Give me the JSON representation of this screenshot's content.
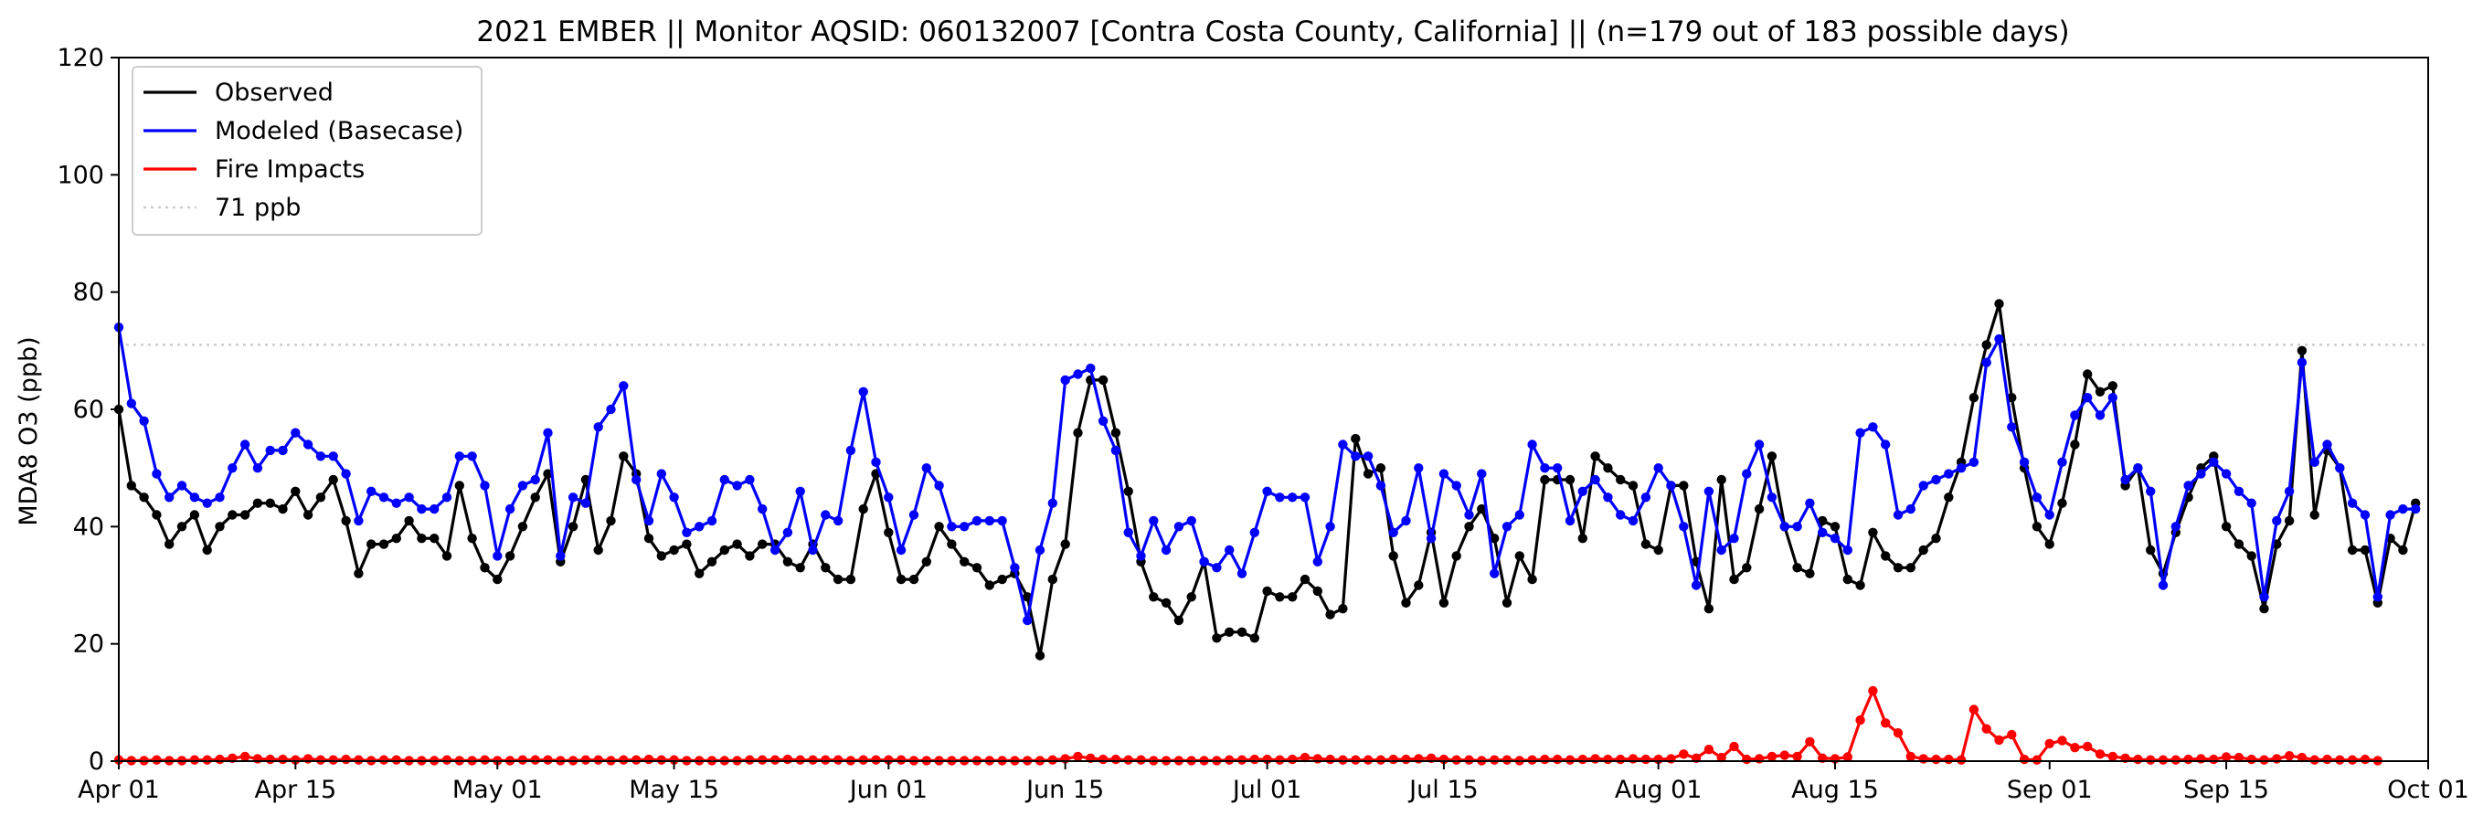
{
  "chart_data": {
    "type": "line",
    "title": "2021 EMBER || Monitor AQSID: 060132007 [Contra Costa County, California] || (n=179 out of 183 possible days)",
    "ylabel": "MDA8 O3 (ppb)",
    "xlabel": "",
    "x_start": "2021-04-01",
    "x_end": "2021-10-01",
    "xlim_days": [
      0,
      183
    ],
    "ylim": [
      0,
      120
    ],
    "yticks": [
      0,
      20,
      40,
      60,
      80,
      100,
      120
    ],
    "ytick_labels": [
      "0",
      "20",
      "40",
      "60",
      "80",
      "100",
      "120"
    ],
    "xticks": [
      {
        "day": 0,
        "label": "Apr 01"
      },
      {
        "day": 14,
        "label": "Apr 15"
      },
      {
        "day": 30,
        "label": "May 01"
      },
      {
        "day": 44,
        "label": "May 15"
      },
      {
        "day": 61,
        "label": "Jun 01"
      },
      {
        "day": 75,
        "label": "Jun 15"
      },
      {
        "day": 91,
        "label": "Jul 01"
      },
      {
        "day": 105,
        "label": "Jul 15"
      },
      {
        "day": 122,
        "label": "Aug 01"
      },
      {
        "day": 136,
        "label": "Aug 15"
      },
      {
        "day": 153,
        "label": "Sep 01"
      },
      {
        "day": 167,
        "label": "Sep 15"
      },
      {
        "day": 183,
        "label": "Oct 01"
      }
    ],
    "grid": false,
    "legend_position": "top-left",
    "legend": [
      {
        "label": "Observed",
        "color": "#000000",
        "style": "solid"
      },
      {
        "label": "Modeled (Basecase)",
        "color": "#0000ff",
        "style": "solid"
      },
      {
        "label": "Fire Impacts",
        "color": "#ff0000",
        "style": "solid"
      },
      {
        "label": "71 ppb",
        "color": "#cccccc",
        "style": "dotted"
      }
    ],
    "threshold": {
      "value": 71,
      "label": "71 ppb",
      "color": "#cccccc"
    },
    "series": [
      {
        "name": "Observed",
        "color": "#000000",
        "start_day": 0,
        "values": [
          60,
          47,
          45,
          42,
          37,
          40,
          42,
          36,
          40,
          42,
          42,
          44,
          44,
          43,
          46,
          42,
          45,
          48,
          41,
          32,
          37,
          37,
          38,
          41,
          38,
          38,
          35,
          47,
          38,
          33,
          31,
          35,
          40,
          45,
          49,
          34,
          40,
          48,
          36,
          41,
          52,
          49,
          38,
          35,
          36,
          37,
          32,
          34,
          36,
          37,
          35,
          37,
          37,
          34,
          33,
          37,
          33,
          31,
          31,
          43,
          49,
          39,
          31,
          31,
          34,
          40,
          37,
          34,
          33,
          30,
          31,
          32,
          28,
          18,
          31,
          37,
          56,
          65,
          65,
          56,
          46,
          34,
          28,
          27,
          24,
          28,
          34,
          21,
          22,
          22,
          21,
          29,
          28,
          28,
          31,
          29,
          25,
          26,
          55,
          49,
          50,
          35,
          27,
          30,
          39,
          27,
          35,
          40,
          43,
          38,
          27,
          35,
          31,
          48,
          48,
          48,
          38,
          52,
          50,
          48,
          47,
          37,
          36,
          47,
          47,
          34,
          26,
          48,
          31,
          33,
          43,
          52,
          40,
          33,
          32,
          41,
          40,
          31,
          30,
          39,
          35,
          33,
          33,
          36,
          38,
          45,
          51,
          62,
          71,
          78,
          62,
          50,
          40,
          37,
          44,
          54,
          66,
          63,
          64,
          47,
          50,
          36,
          32,
          39,
          45,
          50,
          52,
          40,
          37,
          35,
          26,
          37,
          41,
          70,
          42,
          53,
          50,
          36,
          36,
          27,
          38,
          36,
          44
        ]
      },
      {
        "name": "Modeled (Basecase)",
        "color": "#0000ff",
        "start_day": 0,
        "values": [
          74,
          61,
          58,
          49,
          45,
          47,
          45,
          44,
          45,
          50,
          54,
          50,
          53,
          53,
          56,
          54,
          52,
          52,
          49,
          41,
          46,
          45,
          44,
          45,
          43,
          43,
          45,
          52,
          52,
          47,
          35,
          43,
          47,
          48,
          56,
          35,
          45,
          44,
          57,
          60,
          64,
          48,
          41,
          49,
          45,
          39,
          40,
          41,
          48,
          47,
          48,
          43,
          36,
          39,
          46,
          36,
          42,
          41,
          53,
          63,
          51,
          45,
          36,
          42,
          50,
          47,
          40,
          40,
          41,
          41,
          41,
          33,
          24,
          36,
          44,
          65,
          66,
          67,
          58,
          53,
          39,
          35,
          41,
          36,
          40,
          41,
          34,
          33,
          36,
          32,
          39,
          46,
          45,
          45,
          45,
          34,
          40,
          54,
          52,
          52,
          47,
          39,
          41,
          50,
          38,
          49,
          47,
          42,
          49,
          32,
          40,
          42,
          54,
          50,
          50,
          41,
          46,
          48,
          45,
          42,
          41,
          45,
          50,
          47,
          40,
          30,
          46,
          36,
          38,
          49,
          54,
          45,
          40,
          40,
          44,
          39,
          38,
          36,
          56,
          57,
          54,
          42,
          43,
          47,
          48,
          49,
          50,
          51,
          68,
          72,
          57,
          51,
          45,
          42,
          51,
          59,
          62,
          59,
          62,
          48,
          50,
          46,
          30,
          40,
          47,
          49,
          51,
          49,
          46,
          44,
          28,
          41,
          46,
          68,
          51,
          54,
          50,
          44,
          42,
          28,
          42,
          43,
          43
        ]
      },
      {
        "name": "Fire Impacts",
        "color": "#ff0000",
        "start_day": 0,
        "values": [
          0.2,
          0.1,
          0.1,
          0.2,
          0.1,
          0.1,
          0.2,
          0.2,
          0.3,
          0.5,
          0.8,
          0.4,
          0.3,
          0.3,
          0.2,
          0.4,
          0.2,
          0.2,
          0.3,
          0.2,
          0.1,
          0.2,
          0.2,
          0.1,
          0.1,
          0.1,
          0.2,
          0.1,
          0.1,
          0.2,
          0.1,
          0.1,
          0.2,
          0.2,
          0.2,
          0.1,
          0.1,
          0.2,
          0.2,
          0.1,
          0.2,
          0.2,
          0.3,
          0.2,
          0.2,
          0.1,
          0.1,
          0.1,
          0.1,
          0.1,
          0.2,
          0.2,
          0.2,
          0.3,
          0.2,
          0.2,
          0.2,
          0.2,
          0.1,
          0.2,
          0.2,
          0.2,
          0.2,
          0.1,
          0.1,
          0.1,
          0.1,
          0.1,
          0.1,
          0.1,
          0.1,
          0.1,
          0.1,
          0.1,
          0.2,
          0.4,
          0.8,
          0.5,
          0.3,
          0.3,
          0.2,
          0.2,
          0.1,
          0.1,
          0.1,
          0.1,
          0.1,
          0.1,
          0.2,
          0.2,
          0.3,
          0.3,
          0.2,
          0.3,
          0.6,
          0.4,
          0.3,
          0.2,
          0.2,
          0.2,
          0.2,
          0.3,
          0.3,
          0.4,
          0.5,
          0.3,
          0.2,
          0.2,
          0.1,
          0.2,
          0.2,
          0.1,
          0.2,
          0.3,
          0.3,
          0.2,
          0.3,
          0.4,
          0.3,
          0.3,
          0.4,
          0.3,
          0.3,
          0.4,
          1.2,
          0.5,
          2.0,
          0.6,
          2.5,
          0.3,
          0.4,
          0.8,
          1.0,
          0.8,
          3.3,
          0.5,
          0.4,
          0.7,
          7.0,
          12.0,
          6.5,
          4.8,
          0.8,
          0.4,
          0.3,
          0.3,
          0.2,
          8.8,
          5.5,
          3.6,
          4.5,
          0.3,
          0.2,
          3.0,
          3.5,
          2.3,
          2.5,
          1.2,
          0.8,
          0.5,
          0.3,
          0.2,
          0.2,
          0.2,
          0.3,
          0.4,
          0.3,
          0.7,
          0.6,
          0.3,
          0.2,
          0.4,
          0.9,
          0.6,
          0.2,
          0.3,
          0.2,
          0.2,
          0.3,
          0.1
        ]
      }
    ]
  }
}
